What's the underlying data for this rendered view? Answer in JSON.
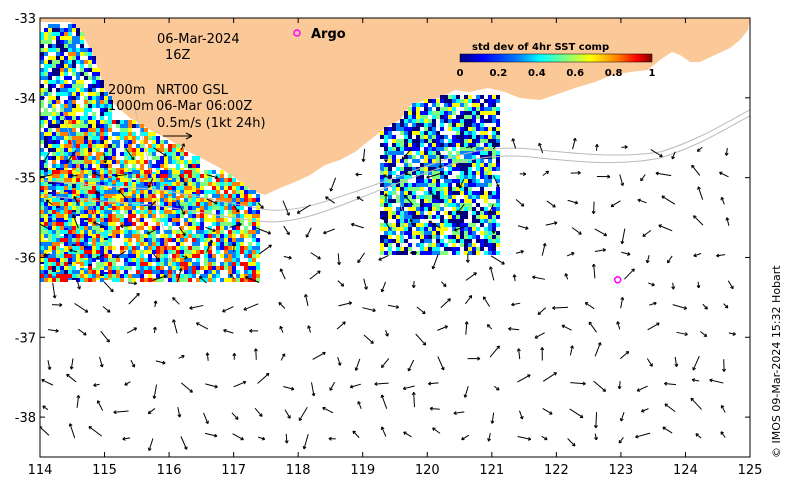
{
  "map": {
    "lon_range": [
      114,
      125
    ],
    "lat_range": [
      -38.5,
      -33
    ],
    "lon_ticks": [
      "114",
      "115",
      "116",
      "117",
      "118",
      "119",
      "120",
      "121",
      "122",
      "123",
      "124",
      "125"
    ],
    "lat_ticks": [
      "-33",
      "-34",
      "-35",
      "-36",
      "-37",
      "-38"
    ],
    "land_color": "#fbc898"
  },
  "annotations": {
    "date": "06-Mar-2024",
    "hour": "16Z",
    "depth_200": "200m",
    "depth_1000": "1000m",
    "product": "NRT00 GSL",
    "product_time": "06-Mar 06:00Z",
    "scale_label": "0.5m/s (1kt 24h)"
  },
  "legend": {
    "argo_label": "Argo",
    "argo_color": "#ff00ff"
  },
  "colorbar": {
    "title": "std dev of 4hr SST comp",
    "ticks": [
      "0",
      "0.2",
      "0.4",
      "0.6",
      "0.8",
      "1"
    ],
    "colors": [
      "#00007f",
      "#0000ff",
      "#007fff",
      "#00ffff",
      "#7fff7f",
      "#ffff00",
      "#ff7f00",
      "#ff0000",
      "#7f0000"
    ]
  },
  "argo_floats": [
    {
      "lon": 122.95,
      "lat": -36.28
    }
  ],
  "credit": "© IMOS 09-Mar-2024 15:32 Hobart"
}
